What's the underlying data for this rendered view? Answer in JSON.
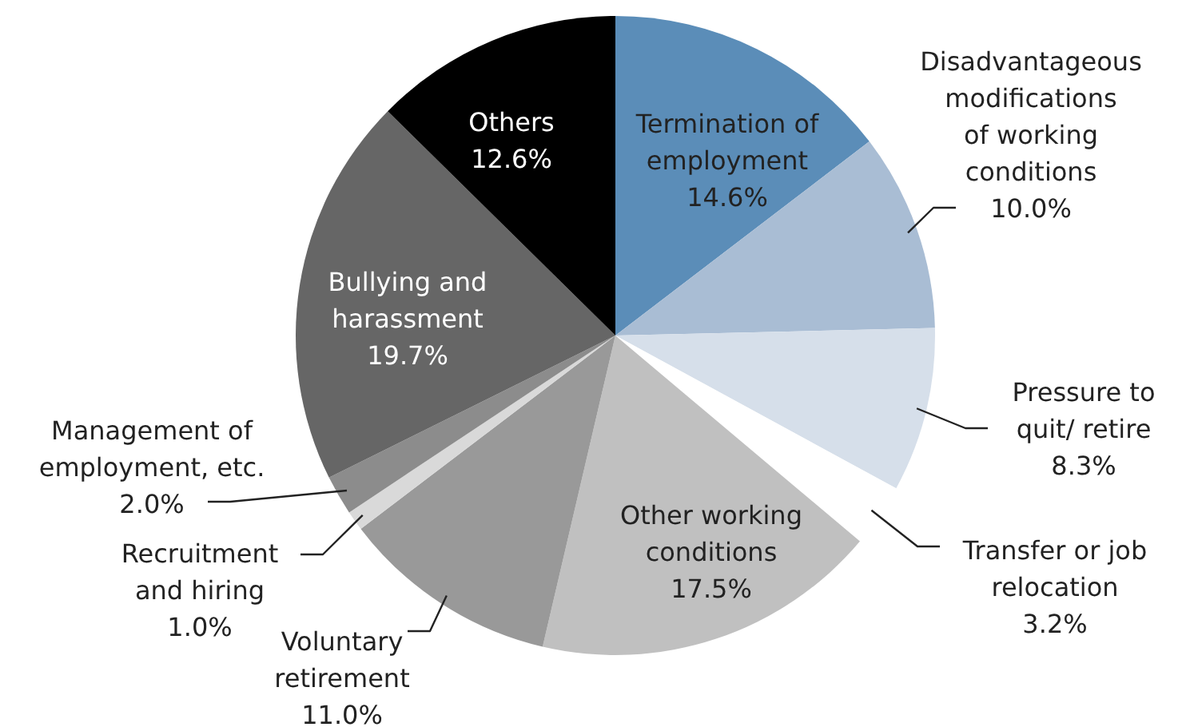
{
  "chart_data": {
    "type": "pie",
    "categories": [
      "Termination of employment",
      "Disadvantageous modifications of working conditions",
      "Pressure to quit/ retire",
      "Transfer or job relocation",
      "Other working conditions",
      "Voluntary retirement",
      "Recruitment and hiring",
      "Management of employment, etc.",
      "Bullying and harassment",
      "Others"
    ],
    "values": [
      14.6,
      10.0,
      8.3,
      3.2,
      17.5,
      11.0,
      1.0,
      2.0,
      19.7,
      12.6
    ],
    "colors": [
      "#5b8db8",
      "#a9bdd4",
      "#d6dfea",
      "#ffffff",
      "#c0c0c0",
      "#999999",
      "#d9d9d9",
      "#8c8c8c",
      "#666666",
      "#000000"
    ],
    "value_labels": [
      "14.6%",
      "10.0%",
      "8.3%",
      "3.2%",
      "17.5%",
      "11.0%",
      "1.0%",
      "2.0%",
      "19.7%",
      "12.6%"
    ]
  }
}
